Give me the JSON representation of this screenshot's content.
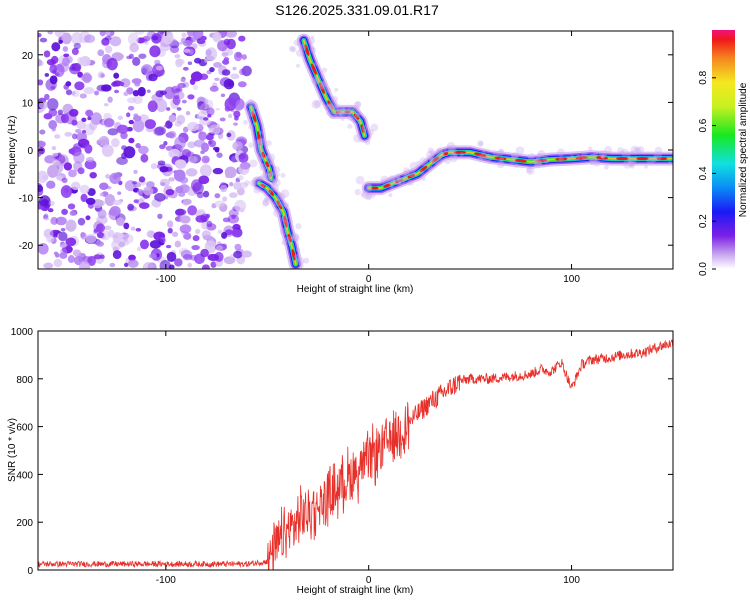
{
  "title": "S126.2025.331.09.01.R17",
  "chart_data": [
    {
      "type": "heatmap",
      "name": "spectrogram",
      "xlabel": "Height of straight line (km)",
      "ylabel": "Frequency (Hz)",
      "xlim": [
        -163,
        150
      ],
      "ylim": [
        -25,
        25
      ],
      "xticks": [
        -100,
        0,
        100
      ],
      "yticks": [
        -20,
        -10,
        0,
        10,
        20
      ],
      "colorbar": {
        "label": "Normalized spectral amplitude",
        "range": [
          0,
          1
        ],
        "ticks": [
          0.0,
          0.2,
          0.4,
          0.6,
          0.8
        ]
      },
      "noise_region": {
        "x": [
          -163,
          -63
        ],
        "y": [
          -25,
          25
        ]
      },
      "tracks": [
        {
          "name": "left-arc-upper",
          "points": [
            [
              -58,
              9
            ],
            [
              -55,
              5
            ],
            [
              -53,
              0
            ],
            [
              -51,
              -2
            ],
            [
              -49,
              -4
            ],
            [
              -48,
              -6
            ]
          ]
        },
        {
          "name": "left-arc-lower",
          "points": [
            [
              -54,
              -7
            ],
            [
              -50,
              -8
            ],
            [
              -46,
              -10
            ],
            [
              -42,
              -13
            ],
            [
              -40,
              -17
            ],
            [
              -38,
              -20
            ],
            [
              -36,
              -24
            ]
          ]
        },
        {
          "name": "upper-branch",
          "points": [
            [
              -32,
              23
            ],
            [
              -29,
              19
            ],
            [
              -25,
              15
            ],
            [
              -21,
              11
            ],
            [
              -17,
              8
            ],
            [
              -13,
              8
            ],
            [
              -8,
              8
            ],
            [
              -4,
              6
            ],
            [
              -2,
              3
            ]
          ]
        },
        {
          "name": "main-track",
          "points": [
            [
              0,
              -8
            ],
            [
              6,
              -8
            ],
            [
              12,
              -7
            ],
            [
              18,
              -6
            ],
            [
              24,
              -5
            ],
            [
              30,
              -3
            ],
            [
              36,
              -1
            ],
            [
              40,
              -0.5
            ],
            [
              50,
              -0.5
            ],
            [
              60,
              -1.5
            ],
            [
              70,
              -2
            ],
            [
              80,
              -2.5
            ],
            [
              90,
              -2
            ],
            [
              100,
              -1.8
            ],
            [
              110,
              -1.5
            ],
            [
              120,
              -1.8
            ],
            [
              130,
              -1.8
            ],
            [
              140,
              -1.8
            ],
            [
              149,
              -1.8
            ]
          ]
        }
      ]
    },
    {
      "type": "line",
      "name": "snr",
      "xlabel": "Height of straight line (km)",
      "ylabel": "SNR (10 * v/v)",
      "xlim": [
        -163,
        150
      ],
      "ylim": [
        0,
        1000
      ],
      "xticks": [
        -100,
        0,
        100
      ],
      "yticks": [
        0,
        200,
        400,
        600,
        800,
        1000
      ],
      "color": "#e8302a",
      "x": [
        -163,
        -140,
        -120,
        -100,
        -80,
        -60,
        -50,
        -45,
        -40,
        -35,
        -30,
        -25,
        -20,
        -15,
        -10,
        -5,
        0,
        5,
        10,
        15,
        20,
        25,
        30,
        35,
        40,
        45,
        50,
        55,
        60,
        70,
        80,
        85,
        90,
        95,
        100,
        105,
        110,
        115,
        120,
        125,
        130,
        135,
        140,
        145,
        150
      ],
      "values": [
        25,
        25,
        25,
        25,
        25,
        25,
        35,
        100,
        160,
        200,
        240,
        270,
        300,
        350,
        390,
        420,
        460,
        500,
        540,
        580,
        620,
        660,
        700,
        730,
        760,
        790,
        800,
        800,
        800,
        810,
        820,
        840,
        830,
        870,
        760,
        860,
        880,
        885,
        890,
        900,
        905,
        910,
        925,
        940,
        950
      ]
    }
  ]
}
